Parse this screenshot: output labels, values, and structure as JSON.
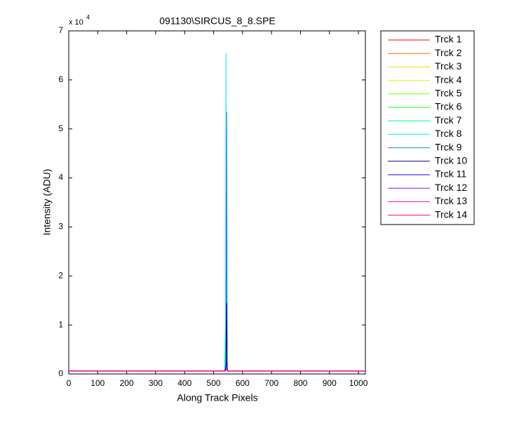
{
  "chart_data": {
    "type": "line",
    "title": "091130\\SIRCUS_8_8.SPE",
    "x_label": "Along Track Pixels",
    "y_label": "Intensity (ADU)",
    "y_multiplier": {
      "base": "x 10",
      "exponent": "4"
    },
    "xlim": [
      0,
      1024
    ],
    "xticks": [
      0,
      100,
      200,
      300,
      400,
      500,
      600,
      700,
      800,
      900,
      1000
    ],
    "ylim": [
      0,
      70000
    ],
    "yticks": [
      {
        "value": 0,
        "label": "0"
      },
      {
        "value": 10000,
        "label": "1"
      },
      {
        "value": 20000,
        "label": "2"
      },
      {
        "value": 30000,
        "label": "3"
      },
      {
        "value": 40000,
        "label": "4"
      },
      {
        "value": 50000,
        "label": "5"
      },
      {
        "value": 60000,
        "label": "6"
      },
      {
        "value": 70000,
        "label": "7"
      }
    ],
    "x": [
      0,
      538,
      541,
      543,
      545,
      547,
      549,
      1024
    ],
    "series": [
      {
        "name": "Trck 1",
        "color": "#ff0000",
        "values": [
          600,
          600,
          900,
          1200,
          900,
          700,
          600,
          600
        ]
      },
      {
        "name": "Trck 2",
        "color": "#ff6a00",
        "values": [
          600,
          600,
          1000,
          1300,
          1000,
          700,
          600,
          600
        ]
      },
      {
        "name": "Trck 3",
        "color": "#ffd400",
        "values": [
          600,
          600,
          1100,
          1500,
          1100,
          700,
          600,
          600
        ]
      },
      {
        "name": "Trck 4",
        "color": "#d4ff00",
        "values": [
          600,
          600,
          1200,
          1700,
          1200,
          700,
          600,
          600
        ]
      },
      {
        "name": "Trck 5",
        "color": "#6aff00",
        "values": [
          600,
          600,
          1300,
          2000,
          1300,
          700,
          600,
          600
        ]
      },
      {
        "name": "Trck 6",
        "color": "#00ff15",
        "values": [
          600,
          600,
          1500,
          2500,
          1500,
          700,
          600,
          600
        ]
      },
      {
        "name": "Trck 7",
        "color": "#00ff80",
        "values": [
          600,
          600,
          9500,
          3000,
          1800,
          800,
          600,
          600
        ]
      },
      {
        "name": "Trck 8",
        "color": "#00eaff",
        "values": [
          600,
          600,
          1800,
          65500,
          2000,
          900,
          600,
          600
        ]
      },
      {
        "name": "Trck 9",
        "color": "#0080ff",
        "values": [
          600,
          600,
          1200,
          2000,
          53500,
          1500,
          600,
          600
        ]
      },
      {
        "name": "Trck 10",
        "color": "#000080",
        "values": [
          600,
          600,
          1000,
          1500,
          14500,
          1200,
          600,
          600
        ]
      },
      {
        "name": "Trck 11",
        "color": "#1500ff",
        "values": [
          600,
          600,
          900,
          1200,
          2500,
          1000,
          600,
          600
        ]
      },
      {
        "name": "Trck 12",
        "color": "#9500ff",
        "values": [
          600,
          600,
          800,
          1000,
          1500,
          800,
          600,
          600
        ]
      },
      {
        "name": "Trck 13",
        "color": "#ff00d4",
        "values": [
          600,
          600,
          700,
          900,
          1200,
          700,
          600,
          600
        ]
      },
      {
        "name": "Trck 14",
        "color": "#ff0055",
        "values": [
          600,
          600,
          700,
          800,
          1000,
          700,
          600,
          600
        ]
      }
    ]
  }
}
